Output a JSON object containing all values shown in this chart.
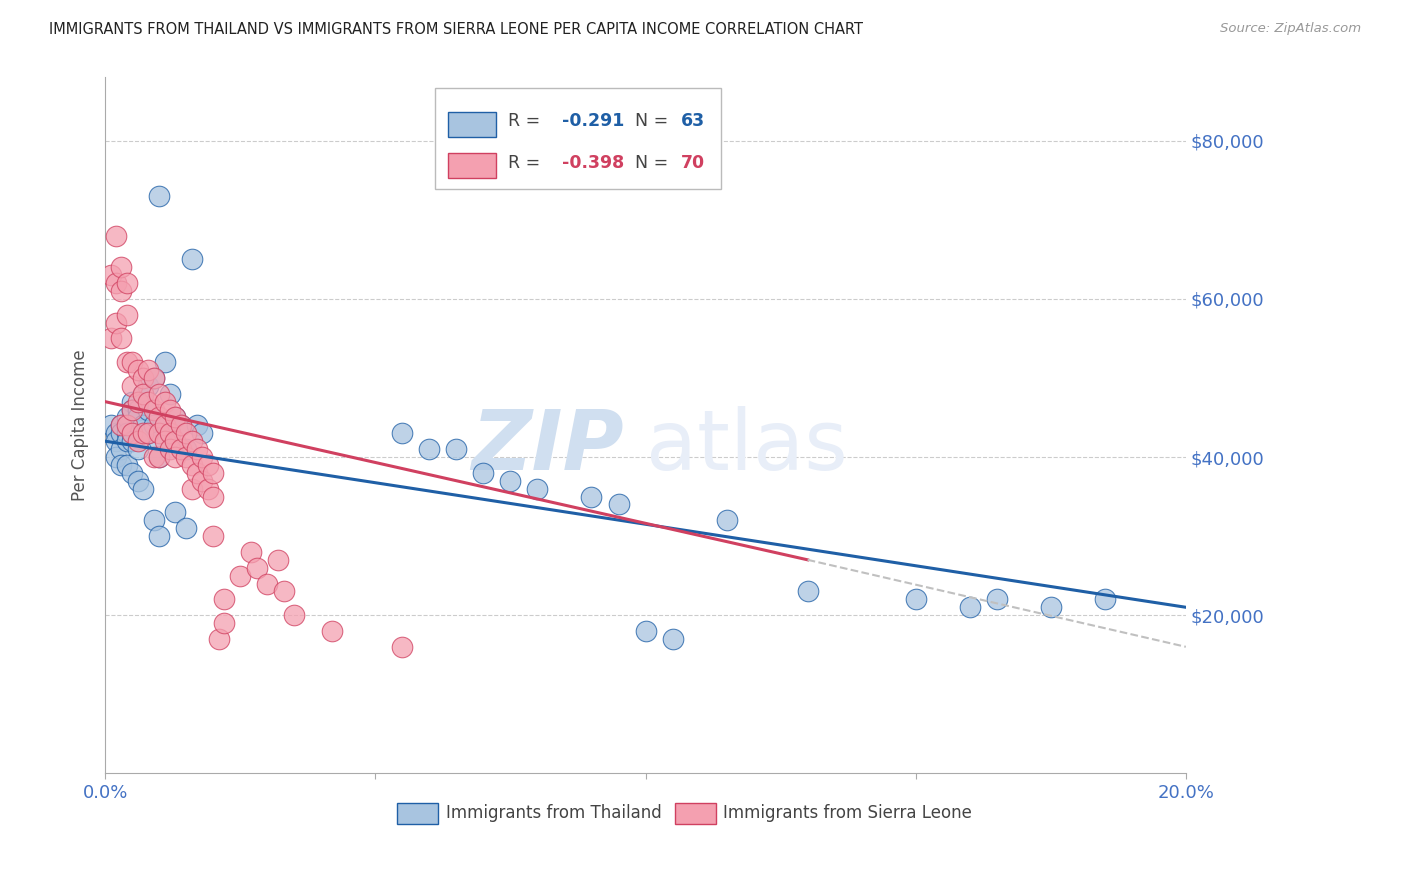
{
  "title": "IMMIGRANTS FROM THAILAND VS IMMIGRANTS FROM SIERRA LEONE PER CAPITA INCOME CORRELATION CHART",
  "source": "Source: ZipAtlas.com",
  "ylabel": "Per Capita Income",
  "ytick_labels": [
    "$20,000",
    "$40,000",
    "$60,000",
    "$80,000"
  ],
  "ytick_values": [
    20000,
    40000,
    60000,
    80000
  ],
  "ylim": [
    0,
    88000
  ],
  "xlim": [
    0.0,
    0.2
  ],
  "legend_r1": "-0.291",
  "legend_n1": "63",
  "legend_r2": "-0.398",
  "legend_n2": "70",
  "color_thailand": "#a8c4e0",
  "color_sierra_leone": "#f4a0b0",
  "color_trend_thailand": "#1f5fa6",
  "color_trend_sierra_leone": "#d04060",
  "color_trend_extrapolate": "#c0c0c0",
  "watermark_zip": "ZIP",
  "watermark_atlas": "atlas",
  "watermark_color": "#d0dff0",
  "label_thailand": "Immigrants from Thailand",
  "label_sierra_leone": "Immigrants from Sierra Leone",
  "background_color": "#ffffff",
  "grid_color": "#cccccc",
  "axis_label_color": "#4472c4",
  "title_color": "#222222",
  "thailand_x": [
    0.001,
    0.002,
    0.002,
    0.002,
    0.003,
    0.003,
    0.003,
    0.003,
    0.004,
    0.004,
    0.004,
    0.004,
    0.005,
    0.005,
    0.005,
    0.005,
    0.005,
    0.006,
    0.006,
    0.006,
    0.006,
    0.007,
    0.007,
    0.007,
    0.008,
    0.008,
    0.008,
    0.009,
    0.009,
    0.009,
    0.01,
    0.01,
    0.01,
    0.01,
    0.011,
    0.011,
    0.012,
    0.012,
    0.013,
    0.013,
    0.014,
    0.015,
    0.015,
    0.016,
    0.017,
    0.018,
    0.055,
    0.06,
    0.065,
    0.07,
    0.075,
    0.08,
    0.09,
    0.095,
    0.1,
    0.105,
    0.115,
    0.13,
    0.15,
    0.16,
    0.165,
    0.175,
    0.185
  ],
  "thailand_y": [
    44000,
    43000,
    42000,
    40000,
    44000,
    43000,
    41000,
    39000,
    45000,
    43000,
    42000,
    39000,
    47000,
    46000,
    43000,
    42000,
    38000,
    46000,
    45000,
    41000,
    37000,
    48000,
    44000,
    36000,
    49000,
    46000,
    43000,
    50000,
    44000,
    32000,
    73000,
    42000,
    40000,
    30000,
    52000,
    44000,
    48000,
    43000,
    45000,
    33000,
    44000,
    41000,
    31000,
    65000,
    44000,
    43000,
    43000,
    41000,
    41000,
    38000,
    37000,
    36000,
    35000,
    34000,
    18000,
    17000,
    32000,
    23000,
    22000,
    21000,
    22000,
    21000,
    22000
  ],
  "sierra_leone_x": [
    0.001,
    0.001,
    0.002,
    0.002,
    0.002,
    0.003,
    0.003,
    0.003,
    0.003,
    0.004,
    0.004,
    0.004,
    0.004,
    0.005,
    0.005,
    0.005,
    0.005,
    0.006,
    0.006,
    0.006,
    0.007,
    0.007,
    0.007,
    0.008,
    0.008,
    0.008,
    0.009,
    0.009,
    0.009,
    0.01,
    0.01,
    0.01,
    0.01,
    0.011,
    0.011,
    0.011,
    0.012,
    0.012,
    0.012,
    0.013,
    0.013,
    0.013,
    0.014,
    0.014,
    0.015,
    0.015,
    0.016,
    0.016,
    0.016,
    0.017,
    0.017,
    0.018,
    0.018,
    0.019,
    0.019,
    0.02,
    0.02,
    0.02,
    0.021,
    0.022,
    0.022,
    0.025,
    0.027,
    0.028,
    0.03,
    0.032,
    0.033,
    0.035,
    0.042,
    0.055
  ],
  "sierra_leone_y": [
    63000,
    55000,
    68000,
    62000,
    57000,
    64000,
    61000,
    55000,
    44000,
    62000,
    58000,
    52000,
    44000,
    52000,
    49000,
    46000,
    43000,
    51000,
    47000,
    42000,
    50000,
    48000,
    43000,
    51000,
    47000,
    43000,
    50000,
    46000,
    40000,
    48000,
    45000,
    43000,
    40000,
    47000,
    44000,
    42000,
    46000,
    43000,
    41000,
    45000,
    42000,
    40000,
    44000,
    41000,
    43000,
    40000,
    42000,
    39000,
    36000,
    41000,
    38000,
    40000,
    37000,
    39000,
    36000,
    38000,
    35000,
    30000,
    17000,
    19000,
    22000,
    25000,
    28000,
    26000,
    24000,
    27000,
    23000,
    20000,
    18000,
    16000
  ],
  "trend_thailand_x0": 0.0,
  "trend_thailand_x1": 0.2,
  "trend_thailand_y0": 42000,
  "trend_thailand_y1": 21000,
  "trend_sl_solid_x0": 0.0,
  "trend_sl_solid_x1": 0.13,
  "trend_sl_solid_y0": 47000,
  "trend_sl_solid_y1": 27000,
  "trend_sl_dash_x0": 0.13,
  "trend_sl_dash_x1": 0.2,
  "trend_sl_dash_y0": 27000,
  "trend_sl_dash_y1": 16000
}
